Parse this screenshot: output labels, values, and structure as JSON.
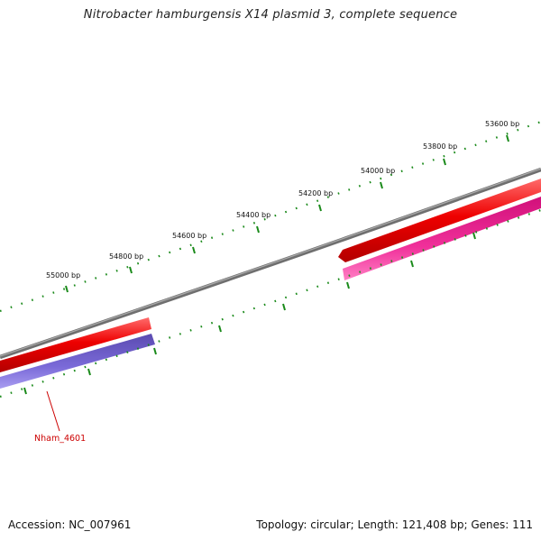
{
  "title": "Nitrobacter hamburgensis X14 plasmid 3, complete sequence",
  "footer": {
    "accession": "Accession: NC_007961",
    "summary": "Topology: circular; Length: 121,408 bp; Genes: 111"
  },
  "scale_labels": [
    "53600 bp",
    "53800 bp",
    "54000 bp",
    "54200 bp",
    "54400 bp",
    "54600 bp",
    "54800 bp",
    "55000 bp"
  ],
  "gene_labels": {
    "nham_4601": "Nham_4601"
  },
  "colors": {
    "backbone": "#777777",
    "forward_gene": "#ee0000",
    "reverse_gene_purple": "#6a5acd",
    "reverse_gene_pink": "#e8188a",
    "tick": "#1a8a1a",
    "gene_label": "#cc0000"
  }
}
